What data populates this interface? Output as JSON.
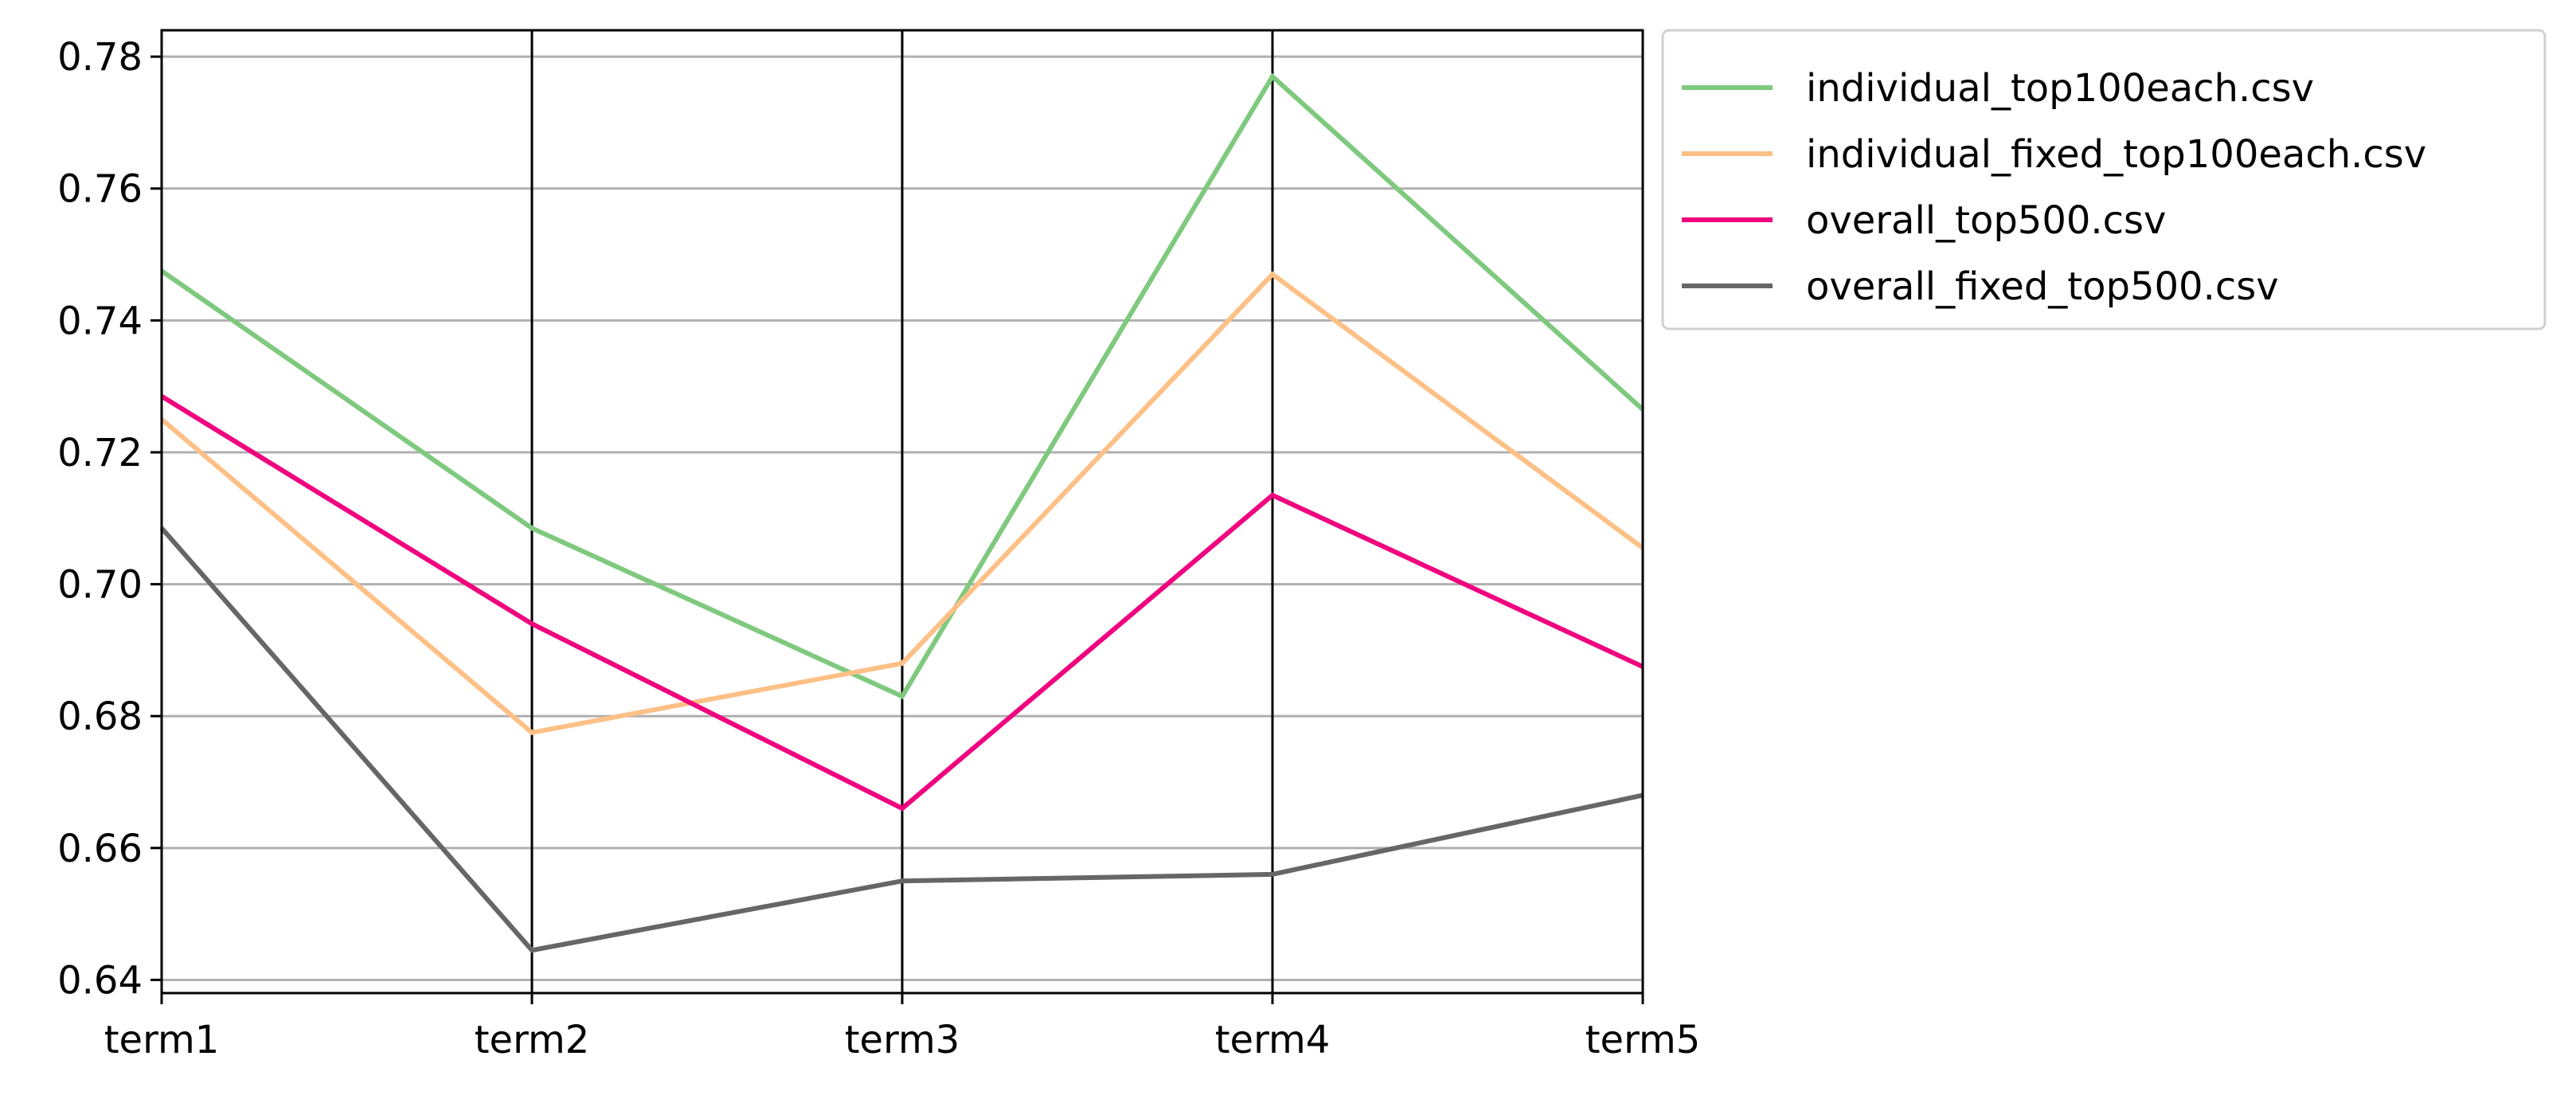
{
  "chart_data": {
    "type": "line",
    "subtype": "parallel-coordinates",
    "title": "",
    "xlabel": "",
    "ylabel": "",
    "categories": [
      "term1",
      "term2",
      "term3",
      "term4",
      "term5"
    ],
    "ylim": [
      0.638,
      0.784
    ],
    "yticks": [
      "0.64",
      "0.66",
      "0.68",
      "0.70",
      "0.72",
      "0.74",
      "0.76",
      "0.78"
    ],
    "grid": "horizontal",
    "legend_position": "outside-top-right",
    "series": [
      {
        "name": "individual_top100each.csv",
        "color": "#7fc97f",
        "values": [
          0.7475,
          0.7085,
          0.683,
          0.777,
          0.7265
        ]
      },
      {
        "name": "individual_fixed_top100each.csv",
        "color": "#fdc086",
        "values": [
          0.725,
          0.6775,
          0.688,
          0.747,
          0.7055
        ]
      },
      {
        "name": "overall_top500.csv",
        "color": "#f0027f",
        "values": [
          0.7285,
          0.694,
          0.666,
          0.7135,
          0.6875
        ]
      },
      {
        "name": "overall_fixed_top500.csv",
        "color": "#666666",
        "values": [
          0.7085,
          0.6445,
          0.655,
          0.656,
          0.668
        ]
      }
    ]
  }
}
